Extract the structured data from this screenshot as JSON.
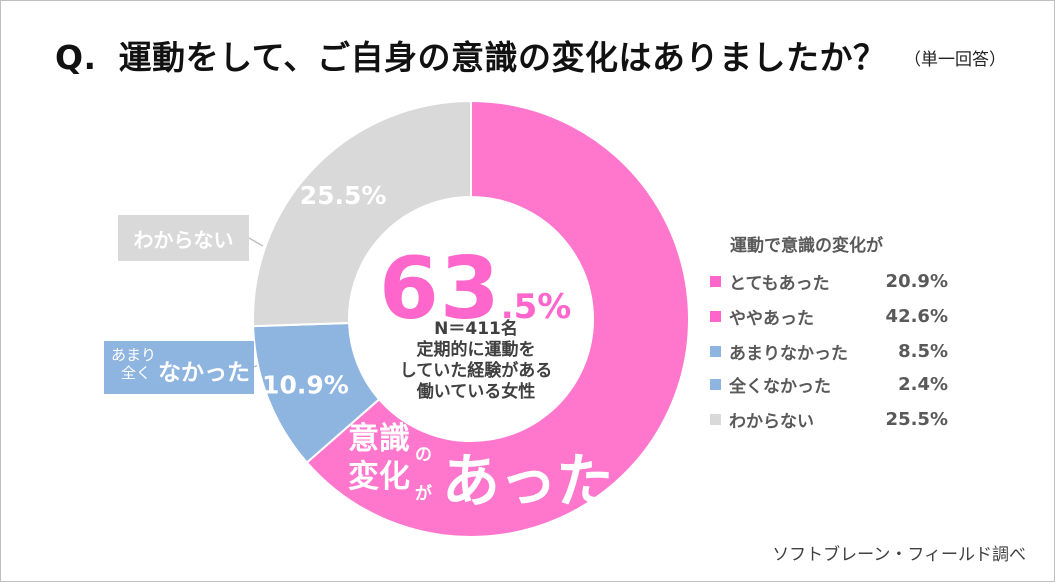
{
  "title": {
    "q_label": "Q.",
    "question": "運動をして、ご自身の意識の変化はありましたか？",
    "note": "（単一回答）"
  },
  "chart_data": {
    "type": "pie",
    "variant": "donut",
    "title": "運動をして、ご自身の意識の変化はありましたか？",
    "legend_title": "運動で意識の変化が",
    "legend_position": "right",
    "slices_in_ring": [
      {
        "label": "意識の変化があった",
        "value": 63.5,
        "color": "#ff77cc"
      },
      {
        "label": "なかった",
        "value": 10.9,
        "color": "#8eb4e0"
      },
      {
        "label": "わからない",
        "value": 25.5,
        "color": "#d9d9d9"
      }
    ],
    "breakdown": [
      {
        "label": "とてもあった",
        "value": 20.9,
        "value_text": "20.9%",
        "color": "#ff66cc"
      },
      {
        "label": "ややあった",
        "value": 42.6,
        "value_text": "42.6%",
        "color": "#ff66cc"
      },
      {
        "label": "あまりなかった",
        "value": 8.5,
        "value_text": "8.5%",
        "color": "#8eb4e0"
      },
      {
        "label": "全くなかった",
        "value": 2.4,
        "value_text": "2.4%",
        "color": "#8eb4e0"
      },
      {
        "label": "わからない",
        "value": 25.5,
        "value_text": "25.5%",
        "color": "#d9d9d9"
      }
    ],
    "slice_labels": {
      "wakaranai": "25.5%",
      "nakatta": "10.9%"
    }
  },
  "center": {
    "big_int": "63",
    "big_dec": ".5%",
    "n_line": "N＝411名",
    "sample_lines": [
      "定期的に運動を",
      "していた経験がある",
      "働いている女性"
    ]
  },
  "overlay": {
    "ishiki": "意識",
    "no": "の",
    "henka": "変化",
    "ga": "が",
    "atta": "あった"
  },
  "callouts": {
    "wakaranai": "わからない",
    "amari": "あまり",
    "mattaku": "全く",
    "nakatta": "なかった"
  },
  "source": "ソフトブレーン・フィールド調べ"
}
